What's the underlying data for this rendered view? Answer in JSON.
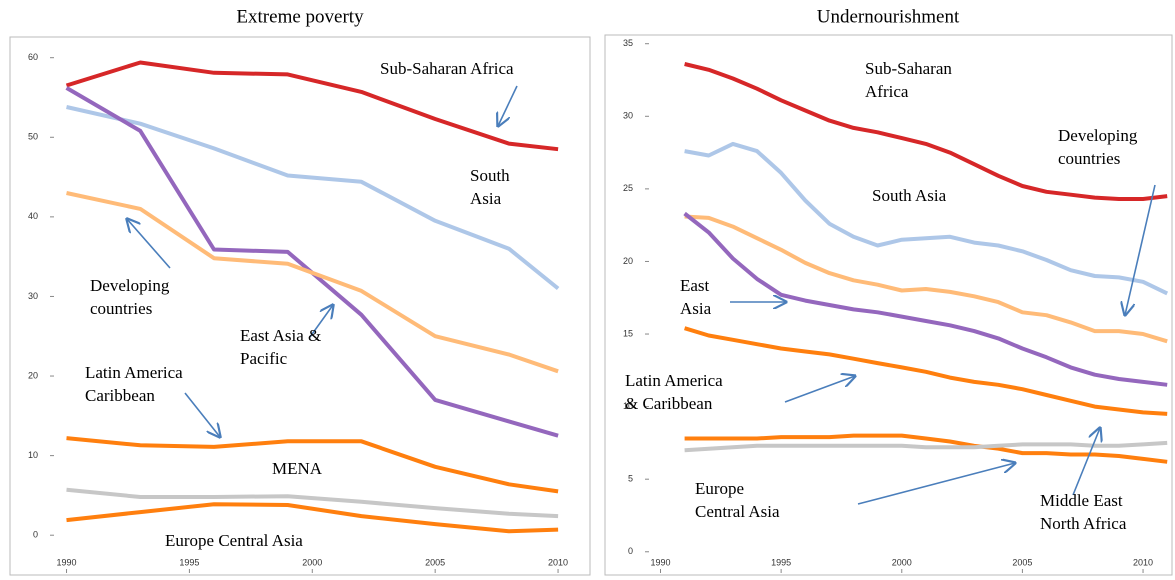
{
  "chart_data": [
    {
      "type": "line",
      "title": "Extreme poverty",
      "x": [
        1990,
        1993,
        1996,
        1999,
        2002,
        2005,
        2008,
        2010
      ],
      "xlim": [
        1987.7,
        2011.3
      ],
      "xticks": [
        1990,
        1995,
        2000,
        2005,
        2010
      ],
      "ylim": [
        -5,
        62.6
      ],
      "yticks": [
        0,
        10,
        20,
        30,
        40,
        50,
        60
      ],
      "series": [
        {
          "name": "Sub-Saharan Africa",
          "color": "#d62728",
          "values": [
            56.5,
            59.4,
            58.1,
            57.9,
            55.7,
            52.3,
            49.2,
            48.5
          ]
        },
        {
          "name": "South Asia",
          "color": "#aec7e8",
          "values": [
            53.8,
            51.7,
            48.6,
            45.2,
            44.4,
            39.5,
            36.0,
            31.0
          ]
        },
        {
          "name": "East Asia & Pacific",
          "color": "#9467bd",
          "values": [
            56.2,
            50.8,
            35.9,
            35.6,
            27.7,
            17.0,
            14.3,
            12.5
          ]
        },
        {
          "name": "Developing countries",
          "color": "#ffbb78",
          "values": [
            43.0,
            41.0,
            34.8,
            34.1,
            30.7,
            25.0,
            22.7,
            20.6
          ]
        },
        {
          "name": "Latin America Caribbean",
          "color": "#ff7f0e",
          "values": [
            12.2,
            11.3,
            11.1,
            11.8,
            11.8,
            8.6,
            6.4,
            5.5
          ]
        },
        {
          "name": "MENA",
          "color": "#c7c7c7",
          "values": [
            5.7,
            4.8,
            4.8,
            4.9,
            4.2,
            3.4,
            2.7,
            2.4
          ]
        },
        {
          "name": "Europe Central Asia",
          "color": "#ff7f0e",
          "values": [
            1.9,
            2.9,
            3.9,
            3.8,
            2.4,
            1.4,
            0.5,
            0.7
          ]
        }
      ]
    },
    {
      "type": "line",
      "title": "Undernourishment",
      "x": [
        1991,
        1992,
        1993,
        1994,
        1995,
        1996,
        1997,
        1998,
        1999,
        2000,
        2001,
        2002,
        2003,
        2004,
        2005,
        2006,
        2007,
        2008,
        2009,
        2010,
        2011
      ],
      "xlim": [
        1987.7,
        2011.2
      ],
      "xticks": [
        1990,
        1995,
        2000,
        2005,
        2010
      ],
      "ylim": [
        -1.6,
        35.6
      ],
      "yticks": [
        0,
        5,
        10,
        15,
        20,
        25,
        30,
        35
      ],
      "series": [
        {
          "name": "Sub-Saharan Africa",
          "color": "#d62728",
          "values": [
            33.6,
            33.2,
            32.6,
            31.9,
            31.1,
            30.4,
            29.7,
            29.2,
            28.9,
            28.5,
            28.1,
            27.5,
            26.7,
            25.9,
            25.2,
            24.8,
            24.6,
            24.4,
            24.3,
            24.3,
            24.5
          ]
        },
        {
          "name": "South Asia",
          "color": "#aec7e8",
          "values": [
            27.6,
            27.3,
            28.1,
            27.6,
            26.1,
            24.2,
            22.6,
            21.7,
            21.1,
            21.5,
            21.6,
            21.7,
            21.3,
            21.1,
            20.7,
            20.1,
            19.4,
            19.0,
            18.9,
            18.6,
            17.8
          ]
        },
        {
          "name": "Developing countries",
          "color": "#ffbb78",
          "values": [
            23.1,
            23.0,
            22.4,
            21.6,
            20.8,
            19.9,
            19.2,
            18.7,
            18.4,
            18.0,
            18.1,
            17.9,
            17.6,
            17.2,
            16.5,
            16.3,
            15.8,
            15.2,
            15.2,
            15.0,
            14.5
          ]
        },
        {
          "name": "East Asia",
          "color": "#9467bd",
          "values": [
            23.3,
            22.0,
            20.2,
            18.8,
            17.7,
            17.3,
            17.0,
            16.7,
            16.5,
            16.2,
            15.9,
            15.6,
            15.2,
            14.7,
            14.0,
            13.4,
            12.7,
            12.2,
            11.9,
            11.7,
            11.5
          ]
        },
        {
          "name": "Latin America & Caribbean",
          "color": "#ff7f0e",
          "values": [
            15.4,
            14.9,
            14.6,
            14.3,
            14.0,
            13.8,
            13.6,
            13.3,
            13.0,
            12.7,
            12.4,
            12.0,
            11.7,
            11.5,
            11.2,
            10.8,
            10.4,
            10.0,
            9.8,
            9.6,
            9.5
          ]
        },
        {
          "name": "Europe Central Asia",
          "color": "#ff7f0e",
          "values": [
            7.8,
            7.8,
            7.8,
            7.8,
            7.9,
            7.9,
            7.9,
            8.0,
            8.0,
            8.0,
            7.8,
            7.6,
            7.3,
            7.1,
            6.8,
            6.8,
            6.7,
            6.7,
            6.6,
            6.4,
            6.2
          ]
        },
        {
          "name": "Middle East North Africa",
          "color": "#c7c7c7",
          "values": [
            7.0,
            7.1,
            7.2,
            7.3,
            7.3,
            7.3,
            7.3,
            7.3,
            7.3,
            7.3,
            7.2,
            7.2,
            7.2,
            7.3,
            7.4,
            7.4,
            7.4,
            7.3,
            7.3,
            7.4,
            7.5
          ]
        }
      ]
    }
  ]
}
